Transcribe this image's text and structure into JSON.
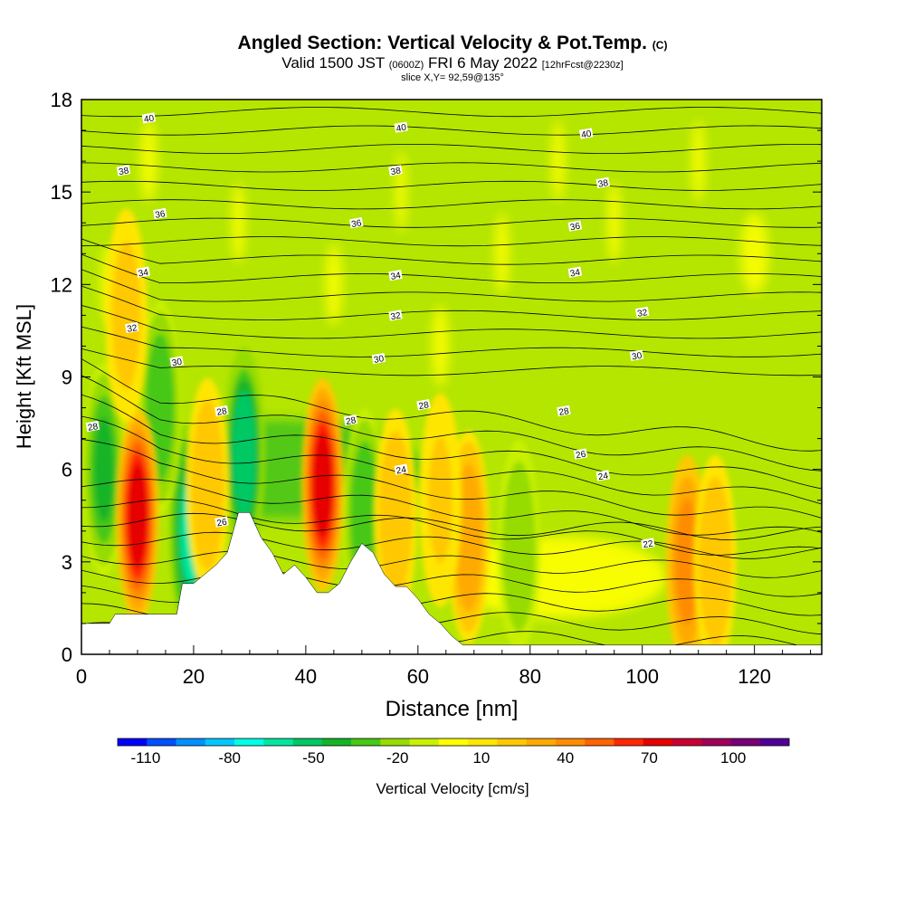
{
  "title": {
    "main": "Angled Section: Vertical Velocity & Pot.Temp.",
    "main_unit": "(C)",
    "valid_prefix": "Valid 1500 JST",
    "valid_utc": "(0600Z)",
    "valid_date": "FRI 6 May 2022",
    "forecast": "[12hrFcst@2230z]",
    "slice": "slice X,Y= 92,59@135°"
  },
  "chart_data": {
    "type": "heatmap",
    "xlabel": "Distance [nm]",
    "ylabel": "Height [Kft MSL]",
    "xlim": [
      0,
      132
    ],
    "ylim": [
      0,
      18
    ],
    "x_ticks": [
      0,
      20,
      40,
      60,
      80,
      100,
      120
    ],
    "y_ticks": [
      0,
      3,
      6,
      9,
      12,
      15,
      18
    ],
    "colorbar": {
      "title": "Vertical Velocity [cm/s]",
      "labels": [
        -110,
        -80,
        -50,
        -20,
        10,
        40,
        70,
        100
      ],
      "range": [
        -120,
        120
      ],
      "colors": [
        "#0000ff",
        "#0050ff",
        "#0090ff",
        "#00c8ff",
        "#00ffe6",
        "#00e6a0",
        "#00c864",
        "#14b428",
        "#46c814",
        "#96dc00",
        "#c8f000",
        "#ffff00",
        "#ffe600",
        "#ffc800",
        "#ffaa00",
        "#ff8c00",
        "#ff6400",
        "#ff2800",
        "#e60000",
        "#c80032",
        "#a0005a",
        "#780078",
        "#500096"
      ]
    },
    "terrain": [
      [
        0,
        1
      ],
      [
        5,
        1
      ],
      [
        6,
        1.3
      ],
      [
        10,
        1.3
      ],
      [
        14,
        1.3
      ],
      [
        17,
        1.3
      ],
      [
        18,
        2.3
      ],
      [
        20,
        2.3
      ],
      [
        22,
        2.6
      ],
      [
        24,
        2.9
      ],
      [
        26,
        3.3
      ],
      [
        28,
        4.6
      ],
      [
        30,
        4.6
      ],
      [
        32,
        3.8
      ],
      [
        34,
        3.3
      ],
      [
        36,
        2.6
      ],
      [
        38,
        2.9
      ],
      [
        40,
        2.5
      ],
      [
        42,
        2
      ],
      [
        44,
        2
      ],
      [
        46,
        2.3
      ],
      [
        48,
        3
      ],
      [
        50,
        3.6
      ],
      [
        52,
        3.3
      ],
      [
        54,
        2.6
      ],
      [
        56,
        2.2
      ],
      [
        58,
        2.2
      ],
      [
        60,
        1.8
      ],
      [
        62,
        1.3
      ],
      [
        64,
        1
      ],
      [
        66,
        0.6
      ],
      [
        68,
        0.3
      ],
      [
        70,
        0.3
      ],
      [
        132,
        0.3
      ]
    ],
    "updrafts": [
      {
        "x": 10,
        "y": 4.5,
        "w": 70
      },
      {
        "x": 8,
        "y": 11,
        "w": 20
      },
      {
        "x": 22.5,
        "y": 5.5,
        "w": 25
      },
      {
        "x": 43,
        "y": 5.5,
        "w": 70
      },
      {
        "x": 56,
        "y": 4.5,
        "w": 25
      },
      {
        "x": 69,
        "y": 3.8,
        "w": 35
      },
      {
        "x": 64,
        "y": 5,
        "w": 18
      },
      {
        "x": 108,
        "y": 3,
        "w": 45
      },
      {
        "x": 113,
        "y": 3,
        "w": 25
      }
    ],
    "downdrafts": [
      {
        "x": 19.5,
        "y": 4,
        "w": -60
      },
      {
        "x": 29,
        "y": 6.5,
        "w": -55
      },
      {
        "x": 4,
        "y": 6,
        "w": -40
      },
      {
        "x": 50.5,
        "y": 4.5,
        "w": -35
      },
      {
        "x": 78,
        "y": 3.5,
        "w": -22
      },
      {
        "x": 14,
        "y": 8,
        "w": -35
      }
    ],
    "theta_labels": [
      {
        "x": 12,
        "y": 17.4,
        "v": "40"
      },
      {
        "x": 57,
        "y": 17.1,
        "v": "40"
      },
      {
        "x": 90,
        "y": 16.9,
        "v": "40"
      },
      {
        "x": 7.5,
        "y": 15.7,
        "v": "38"
      },
      {
        "x": 56,
        "y": 15.7,
        "v": "38"
      },
      {
        "x": 93,
        "y": 15.3,
        "v": "38"
      },
      {
        "x": 14,
        "y": 14.3,
        "v": "36"
      },
      {
        "x": 49,
        "y": 14,
        "v": "36"
      },
      {
        "x": 88,
        "y": 13.9,
        "v": "36"
      },
      {
        "x": 11,
        "y": 12.4,
        "v": "34"
      },
      {
        "x": 56,
        "y": 12.3,
        "v": "34"
      },
      {
        "x": 88,
        "y": 12.4,
        "v": "34"
      },
      {
        "x": 9,
        "y": 10.6,
        "v": "32"
      },
      {
        "x": 56,
        "y": 11,
        "v": "32"
      },
      {
        "x": 100,
        "y": 11.1,
        "v": "32"
      },
      {
        "x": 17,
        "y": 9.5,
        "v": "30"
      },
      {
        "x": 53,
        "y": 9.6,
        "v": "30"
      },
      {
        "x": 99,
        "y": 9.7,
        "v": "30"
      },
      {
        "x": 2,
        "y": 7.4,
        "v": "28"
      },
      {
        "x": 25,
        "y": 7.9,
        "v": "28"
      },
      {
        "x": 48,
        "y": 7.6,
        "v": "28"
      },
      {
        "x": 61,
        "y": 8.1,
        "v": "28"
      },
      {
        "x": 86,
        "y": 7.9,
        "v": "28"
      },
      {
        "x": 89,
        "y": 6.5,
        "v": "26"
      },
      {
        "x": 25,
        "y": 4.3,
        "v": "26"
      },
      {
        "x": 57,
        "y": 6,
        "v": "24"
      },
      {
        "x": 93,
        "y": 5.8,
        "v": "24"
      },
      {
        "x": 101,
        "y": 3.6,
        "v": "22"
      }
    ]
  }
}
